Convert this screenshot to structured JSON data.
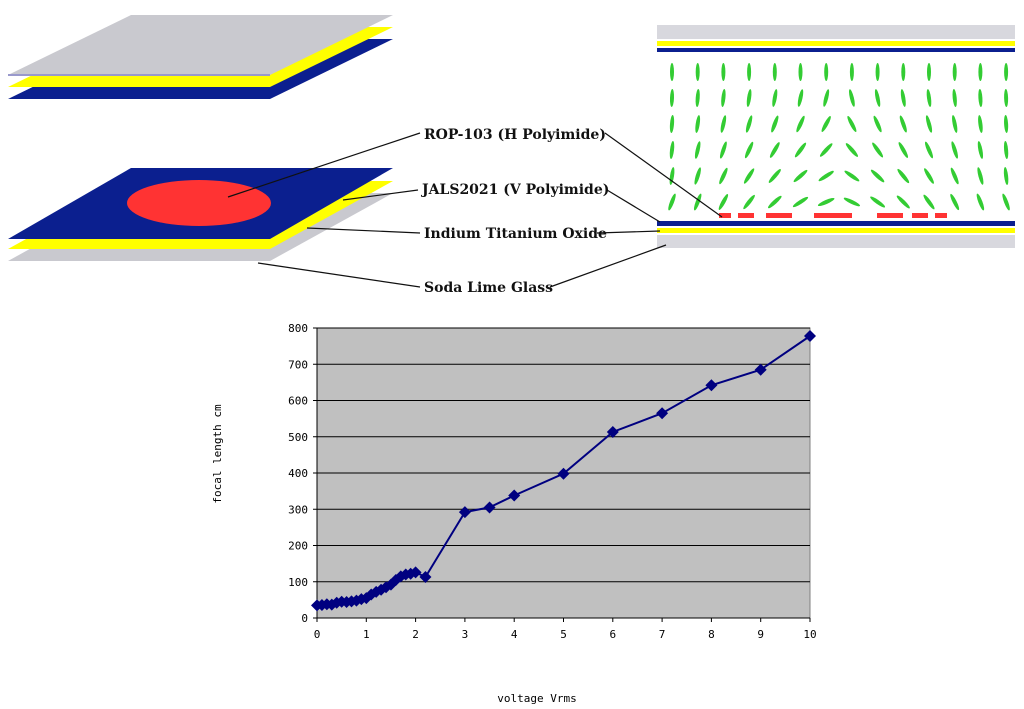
{
  "diagram": {
    "labels": {
      "rop": "ROP-103 (H Polyimide)",
      "jals": "JALS2021 (V Polyimide)",
      "ito": "Indium Titanium Oxide",
      "glass": "Soda Lime Glass"
    },
    "colors": {
      "glass": "#c9c9cf",
      "ito": "#ffff00",
      "polyimide": "#0b1f8f",
      "electrode": "#ff3333",
      "lc_molecule": "#33cc33"
    }
  },
  "chart_data": {
    "type": "line",
    "title": "",
    "xlabel": "voltage Vrms",
    "ylabel": "focal length cm",
    "xlim": [
      0,
      10
    ],
    "ylim": [
      0,
      800
    ],
    "xticks": [
      0,
      1,
      2,
      3,
      4,
      5,
      6,
      7,
      8,
      9,
      10
    ],
    "yticks": [
      0,
      100,
      200,
      300,
      400,
      500,
      600,
      700,
      800
    ],
    "grid": true,
    "legend": "none",
    "plot_background": "#c0c0c0",
    "series_color": "#000080",
    "series": [
      {
        "marker": "diamond",
        "x": [
          0,
          0.1,
          0.2,
          0.3,
          0.4,
          0.5,
          0.6,
          0.7,
          0.8,
          0.9,
          1.0,
          1.1,
          1.2,
          1.3,
          1.4,
          1.5,
          1.6,
          1.7,
          1.8,
          1.9,
          2.0,
          2.2,
          3,
          3.5,
          4,
          5,
          6,
          7,
          8,
          9,
          10
        ],
        "y": [
          35,
          36,
          38,
          37,
          42,
          45,
          44,
          46,
          48,
          52,
          55,
          65,
          72,
          78,
          85,
          92,
          105,
          115,
          120,
          122,
          126,
          113,
          292,
          305,
          338,
          398,
          513,
          565,
          642,
          685,
          778
        ]
      }
    ]
  }
}
